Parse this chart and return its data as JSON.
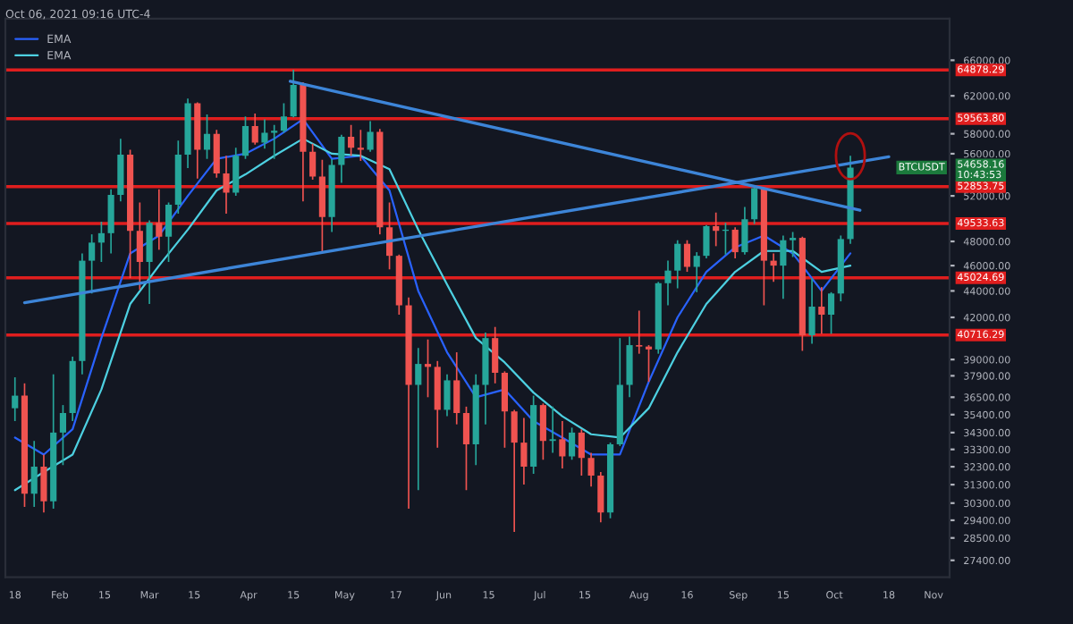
{
  "chart_data": {
    "type": "candlestick",
    "annotations": [
      "Oct 06, 2021 09:16 UTC-4",
      "BTCUSDT",
      "54658.16\n10:43:53"
    ],
    "colors": [
      "#26a69a",
      "#ef5350",
      "#26a69a",
      "#ef5350",
      "#26a69a",
      "#26a69a",
      "#26a69a",
      "#26a69a",
      "#26a69a",
      "#26a69a",
      "#26a69a",
      "#26a69a",
      "#ef5350",
      "#ef5350",
      "#26a69a",
      "#ef5350",
      "#26a69a",
      "#26a69a",
      "#26a69a",
      "#ef5350",
      "#26a69a",
      "#ef5350",
      "#ef5350",
      "#26a69a",
      "#26a69a",
      "#ef5350",
      "#26a69a",
      "#26a69a",
      "#26a69a",
      "#26a69a",
      "#ef5350",
      "#ef5350",
      "#ef5350",
      "#26a69a",
      "#26a69a",
      "#ef5350",
      "#ef5350",
      "#26a69a",
      "#ef5350",
      "#ef5350",
      "#ef5350",
      "#ef5350",
      "#26a69a",
      "#ef5350",
      "#ef5350",
      "#26a69a",
      "#ef5350",
      "#ef5350",
      "#26a69a",
      "#26a69a",
      "#ef5350",
      "#ef5350",
      "#ef5350",
      "#ef5350",
      "#26a69a",
      "#ef5350",
      "#26a69a",
      "#ef5350",
      "#26a69a",
      "#ef5350",
      "#ef5350",
      "#ef5350",
      "#26a69a",
      "#26a69a",
      "#26a69a",
      "#ef5350",
      "#ef5350",
      "#26a69a",
      "#26a69a",
      "#26a69a",
      "#ef5350",
      "#26a69a",
      "#26a69a",
      "#ef5350",
      "#26a69a",
      "#ef5350",
      "#26a69a",
      "#26a69a",
      "#ef5350",
      "#ef5350",
      "#26a69a",
      "#26a69a",
      "#ef5350",
      "#26a69a",
      "#ef5350",
      "#26a69a",
      "#26a69a",
      "#26a69a"
    ],
    "x": [
      "2021-01-18",
      "2021-01-21",
      "2021-01-24",
      "2021-01-27",
      "2021-01-30",
      "2021-02-02",
      "2021-02-05",
      "2021-02-08",
      "2021-02-11",
      "2021-02-14",
      "2021-02-17",
      "2021-02-20",
      "2021-02-23",
      "2021-02-26",
      "2021-03-01",
      "2021-03-04",
      "2021-03-07",
      "2021-03-10",
      "2021-03-13",
      "2021-03-16",
      "2021-03-19",
      "2021-03-22",
      "2021-03-25",
      "2021-03-28",
      "2021-03-31",
      "2021-04-03",
      "2021-04-06",
      "2021-04-09",
      "2021-04-12",
      "2021-04-15",
      "2021-04-18",
      "2021-04-21",
      "2021-04-24",
      "2021-04-27",
      "2021-04-30",
      "2021-05-03",
      "2021-05-06",
      "2021-05-09",
      "2021-05-12",
      "2021-05-15",
      "2021-05-18",
      "2021-05-21",
      "2021-05-24",
      "2021-05-27",
      "2021-05-30",
      "2021-06-02",
      "2021-06-05",
      "2021-06-08",
      "2021-06-11",
      "2021-06-14",
      "2021-06-17",
      "2021-06-20",
      "2021-06-23",
      "2021-06-26",
      "2021-06-29",
      "2021-07-02",
      "2021-07-05",
      "2021-07-08",
      "2021-07-11",
      "2021-07-14",
      "2021-07-17",
      "2021-07-20",
      "2021-07-23",
      "2021-07-26",
      "2021-07-29",
      "2021-08-01",
      "2021-08-04",
      "2021-08-07",
      "2021-08-10",
      "2021-08-13",
      "2021-08-16",
      "2021-08-19",
      "2021-08-22",
      "2021-08-25",
      "2021-08-28",
      "2021-08-31",
      "2021-09-03",
      "2021-09-06",
      "2021-09-09",
      "2021-09-12",
      "2021-09-15",
      "2021-09-18",
      "2021-09-21",
      "2021-09-24",
      "2021-09-27",
      "2021-09-30",
      "2021-10-03",
      "2021-10-06"
    ],
    "ohlc": [
      [
        35800,
        37800,
        35000,
        36600
      ],
      [
        36600,
        37400,
        30100,
        30800
      ],
      [
        30800,
        33800,
        30100,
        32300
      ],
      [
        32300,
        33000,
        29800,
        30400
      ],
      [
        30400,
        38000,
        30000,
        34300
      ],
      [
        34300,
        36000,
        32400,
        35500
      ],
      [
        35500,
        39200,
        35000,
        38900
      ],
      [
        38900,
        47000,
        38000,
        46400
      ],
      [
        46400,
        48600,
        43800,
        47900
      ],
      [
        47900,
        49700,
        46300,
        48700
      ],
      [
        48700,
        52600,
        47000,
        52100
      ],
      [
        52100,
        57500,
        51500,
        55900
      ],
      [
        55900,
        56400,
        45000,
        48900
      ],
      [
        48900,
        51400,
        44100,
        46300
      ],
      [
        46300,
        49800,
        43000,
        49600
      ],
      [
        49600,
        52600,
        47300,
        48400
      ],
      [
        48400,
        51400,
        46300,
        51200
      ],
      [
        51200,
        57300,
        50400,
        55900
      ],
      [
        55900,
        61700,
        54600,
        61200
      ],
      [
        61200,
        61300,
        53600,
        56400
      ],
      [
        56400,
        60000,
        55500,
        58000
      ],
      [
        58000,
        58400,
        53700,
        54100
      ],
      [
        54100,
        55800,
        50400,
        52300
      ],
      [
        52300,
        56600,
        52000,
        55800
      ],
      [
        55800,
        59800,
        55500,
        58800
      ],
      [
        58800,
        60100,
        56900,
        57100
      ],
      [
        57100,
        59500,
        56500,
        58100
      ],
      [
        58100,
        58900,
        55500,
        58300
      ],
      [
        58300,
        61200,
        58100,
        59800
      ],
      [
        59800,
        64900,
        59700,
        63200
      ],
      [
        63200,
        63500,
        51500,
        56200
      ],
      [
        56200,
        57000,
        53500,
        53800
      ],
      [
        53800,
        55400,
        47100,
        50100
      ],
      [
        50100,
        55500,
        48800,
        54900
      ],
      [
        54900,
        57900,
        53200,
        57700
      ],
      [
        57700,
        58900,
        55800,
        56600
      ],
      [
        56600,
        58400,
        55300,
        56400
      ],
      [
        56400,
        59300,
        56200,
        58200
      ],
      [
        58200,
        58500,
        48600,
        49200
      ],
      [
        49200,
        51400,
        45700,
        46800
      ],
      [
        46800,
        46900,
        42200,
        42900
      ],
      [
        42900,
        43500,
        30000,
        37300
      ],
      [
        37300,
        39800,
        31000,
        38700
      ],
      [
        38700,
        40400,
        36500,
        38500
      ],
      [
        38500,
        38900,
        33400,
        35700
      ],
      [
        35700,
        38000,
        35300,
        37600
      ],
      [
        37600,
        39500,
        34800,
        35500
      ],
      [
        35500,
        35900,
        31000,
        33600
      ],
      [
        33600,
        38000,
        32400,
        37300
      ],
      [
        37300,
        40900,
        34800,
        40500
      ],
      [
        40500,
        41300,
        37400,
        38100
      ],
      [
        38100,
        38200,
        33400,
        35600
      ],
      [
        35600,
        35700,
        28800,
        33700
      ],
      [
        33700,
        35200,
        31300,
        32300
      ],
      [
        32300,
        36600,
        31900,
        36000
      ],
      [
        36000,
        36100,
        32700,
        33800
      ],
      [
        33800,
        35900,
        33100,
        33900
      ],
      [
        33900,
        35000,
        32200,
        32900
      ],
      [
        32900,
        34600,
        32700,
        34300
      ],
      [
        34300,
        34500,
        31800,
        32800
      ],
      [
        32800,
        33100,
        31200,
        31800
      ],
      [
        31800,
        32000,
        29300,
        29800
      ],
      [
        29800,
        33700,
        29500,
        33600
      ],
      [
        33600,
        40500,
        33500,
        37300
      ],
      [
        37300,
        40600,
        36500,
        40000
      ],
      [
        40000,
        42500,
        39400,
        39900
      ],
      [
        39900,
        40000,
        37500,
        39700
      ],
      [
        39700,
        44700,
        39400,
        44600
      ],
      [
        44600,
        46400,
        42900,
        45600
      ],
      [
        45600,
        48100,
        44200,
        47800
      ],
      [
        47800,
        48100,
        45500,
        45900
      ],
      [
        45900,
        47100,
        43900,
        46800
      ],
      [
        46800,
        49400,
        46600,
        49300
      ],
      [
        49300,
        50500,
        47600,
        48900
      ],
      [
        48900,
        49600,
        46900,
        49000
      ],
      [
        49000,
        49200,
        46600,
        47100
      ],
      [
        47100,
        51000,
        46900,
        49900
      ],
      [
        49900,
        52900,
        49500,
        52700
      ],
      [
        52700,
        52800,
        42900,
        46400
      ],
      [
        46400,
        47000,
        44700,
        46000
      ],
      [
        46000,
        48500,
        43400,
        48100
      ],
      [
        48100,
        48800,
        46700,
        48300
      ],
      [
        48300,
        48400,
        39600,
        40700
      ],
      [
        40700,
        45000,
        40100,
        42800
      ],
      [
        42800,
        44300,
        40800,
        42200
      ],
      [
        42200,
        43900,
        40800,
        43800
      ],
      [
        43800,
        48500,
        43200,
        48200
      ],
      [
        48200,
        55800,
        47800,
        54658.16
      ]
    ],
    "series": [
      {
        "type": "line",
        "name": "EMA",
        "color": "#2962ff",
        "x": [
          "2021-01-18",
          "2021-01-27",
          "2021-02-05",
          "2021-02-14",
          "2021-02-23",
          "2021-03-04",
          "2021-03-13",
          "2021-03-22",
          "2021-03-31",
          "2021-04-09",
          "2021-04-18",
          "2021-04-27",
          "2021-05-06",
          "2021-05-15",
          "2021-05-24",
          "2021-06-02",
          "2021-06-11",
          "2021-06-20",
          "2021-06-29",
          "2021-07-08",
          "2021-07-17",
          "2021-07-26",
          "2021-08-04",
          "2021-08-13",
          "2021-08-22",
          "2021-08-31",
          "2021-09-09",
          "2021-09-18",
          "2021-09-27",
          "2021-10-06"
        ],
        "values": [
          34000,
          33000,
          34500,
          40500,
          47000,
          48500,
          52000,
          55500,
          56000,
          57500,
          59500,
          55500,
          55800,
          52500,
          44000,
          39500,
          36500,
          37000,
          35000,
          34000,
          33000,
          33000,
          37500,
          42000,
          45500,
          47500,
          48500,
          47000,
          44000,
          47000
        ]
      },
      {
        "type": "line",
        "name": "EMA",
        "color": "#4dd0e1",
        "x": [
          "2021-01-18",
          "2021-01-27",
          "2021-02-05",
          "2021-02-14",
          "2021-02-23",
          "2021-03-04",
          "2021-03-13",
          "2021-03-22",
          "2021-03-31",
          "2021-04-09",
          "2021-04-18",
          "2021-04-27",
          "2021-05-06",
          "2021-05-15",
          "2021-05-24",
          "2021-06-02",
          "2021-06-11",
          "2021-06-20",
          "2021-06-29",
          "2021-07-08",
          "2021-07-17",
          "2021-07-26",
          "2021-08-04",
          "2021-08-13",
          "2021-08-22",
          "2021-08-31",
          "2021-09-09",
          "2021-09-18",
          "2021-09-27",
          "2021-10-06"
        ],
        "values": [
          31000,
          32000,
          33000,
          37000,
          43000,
          46000,
          49000,
          52500,
          54000,
          55800,
          57500,
          56000,
          55800,
          54500,
          49000,
          44500,
          40500,
          38800,
          36800,
          35300,
          34200,
          34000,
          35800,
          39500,
          43000,
          45500,
          47200,
          47200,
          45500,
          46000
        ]
      },
      {
        "type": "line",
        "color": "#3d85d8",
        "x": [
          "2021-04-14",
          "2021-10-09"
        ],
        "values": [
          63600,
          50700
        ]
      },
      {
        "type": "line",
        "color": "#3d85d8",
        "x": [
          "2021-01-21",
          "2021-10-18"
        ],
        "values": [
          43100,
          55700
        ]
      }
    ],
    "ref_lines": [
      {
        "axis": "y",
        "value": 64878.29,
        "label": "64878.29",
        "color": "#e01e1e"
      },
      {
        "axis": "y",
        "value": 59563.8,
        "label": "59563.80",
        "color": "#e01e1e"
      },
      {
        "axis": "y",
        "value": 52853.75,
        "label": "52853.75",
        "color": "#e01e1e"
      },
      {
        "axis": "y",
        "value": 49533.63,
        "label": "49533.63",
        "color": "#e01e1e"
      },
      {
        "axis": "y",
        "value": 45024.69,
        "label": "45024.69",
        "color": "#e01e1e"
      },
      {
        "axis": "y",
        "value": 40716.29,
        "label": "40716.29",
        "color": "#e01e1e"
      }
    ],
    "log": "y",
    "xlim": [
      "2021-01-15",
      "2021-11-06"
    ],
    "xticks": [
      {
        "value": "2021-01-18",
        "label": "18"
      },
      {
        "value": "2021-02-01",
        "label": "Feb"
      },
      {
        "value": "2021-02-15",
        "label": "15"
      },
      {
        "value": "2021-03-01",
        "label": "Mar"
      },
      {
        "value": "2021-03-15",
        "label": "15"
      },
      {
        "value": "2021-04-01",
        "label": "Apr"
      },
      {
        "value": "2021-04-15",
        "label": "15"
      },
      {
        "value": "2021-05-01",
        "label": "May"
      },
      {
        "value": "2021-05-17",
        "label": "17"
      },
      {
        "value": "2021-06-01",
        "label": "Jun"
      },
      {
        "value": "2021-06-15",
        "label": "15"
      },
      {
        "value": "2021-07-01",
        "label": "Jul"
      },
      {
        "value": "2021-07-15",
        "label": "15"
      },
      {
        "value": "2021-08-01",
        "label": "Aug"
      },
      {
        "value": "2021-08-16",
        "label": "16"
      },
      {
        "value": "2021-09-01",
        "label": "Sep"
      },
      {
        "value": "2021-09-15",
        "label": "15"
      },
      {
        "value": "2021-10-01",
        "label": "Oct"
      },
      {
        "value": "2021-10-18",
        "label": "18"
      },
      {
        "value": "2021-11-01",
        "label": "Nov"
      }
    ],
    "ylim": [
      26600,
      71000
    ],
    "yticks": [
      {
        "value": 66000,
        "label": "66000.00"
      },
      {
        "value": 62000,
        "label": "62000.00"
      },
      {
        "value": 58000,
        "label": "58000.00"
      },
      {
        "value": 56000,
        "label": "56000.00"
      },
      {
        "value": 52000,
        "label": "52000.00"
      },
      {
        "value": 48000,
        "label": "48000.00"
      },
      {
        "value": 46000,
        "label": "46000.00"
      },
      {
        "value": 44000,
        "label": "44000.00"
      },
      {
        "value": 42000,
        "label": "42000.00"
      },
      {
        "value": 39000,
        "label": "39000.00"
      },
      {
        "value": 37900,
        "label": "37900.00"
      },
      {
        "value": 36500,
        "label": "36500.00"
      },
      {
        "value": 35400,
        "label": "35400.00"
      },
      {
        "value": 34300,
        "label": "34300.00"
      },
      {
        "value": 33300,
        "label": "33300.00"
      },
      {
        "value": 32300,
        "label": "32300.00"
      },
      {
        "value": 31300,
        "label": "31300.00"
      },
      {
        "value": 30300,
        "label": "30300.00"
      },
      {
        "value": 29400,
        "label": "29400.00"
      },
      {
        "value": 28500,
        "label": "28500.00"
      },
      {
        "value": 27400,
        "label": "27400.00"
      }
    ],
    "legend": "top left"
  }
}
